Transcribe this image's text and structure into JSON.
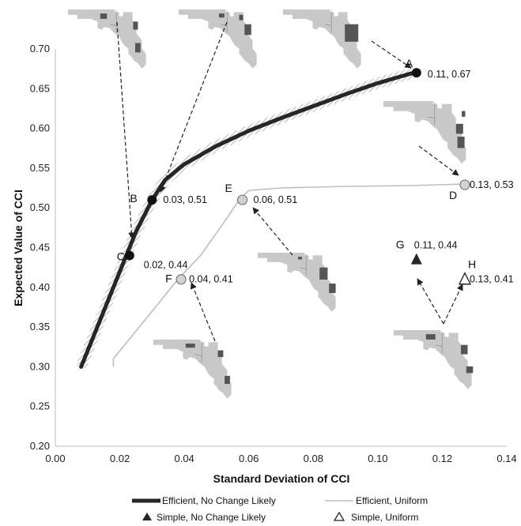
{
  "chart_data": {
    "type": "line",
    "xlabel": "Standard Deviation of CCI",
    "ylabel": "Expected Value of CCI",
    "xlim": [
      0,
      0.14
    ],
    "ylim": [
      0.2,
      0.7
    ],
    "x_ticks": [
      "0.00",
      "0.02",
      "0.04",
      "0.06",
      "0.08",
      "0.10",
      "0.12",
      "0.14"
    ],
    "y_ticks": [
      "0.20",
      "0.25",
      "0.30",
      "0.35",
      "0.40",
      "0.45",
      "0.50",
      "0.55",
      "0.60",
      "0.65",
      "0.70"
    ],
    "grid": false,
    "legend_position": "bottom",
    "series": [
      {
        "name": "Efficient, No Change Likely",
        "style": "thick-line",
        "color": "#262626",
        "x": [
          0.008,
          0.015,
          0.02,
          0.025,
          0.03,
          0.034,
          0.04,
          0.05,
          0.06,
          0.07,
          0.08,
          0.09,
          0.1,
          0.111
        ],
        "y": [
          0.3,
          0.37,
          0.42,
          0.47,
          0.51,
          0.535,
          0.555,
          0.578,
          0.597,
          0.613,
          0.628,
          0.643,
          0.657,
          0.67
        ]
      },
      {
        "name": "Efficient, Uniform",
        "style": "thin-line",
        "color": "#bdbdbd",
        "x": [
          0.018,
          0.018,
          0.022,
          0.03,
          0.038,
          0.045,
          0.052,
          0.057,
          0.06,
          0.07,
          0.09,
          0.11,
          0.127
        ],
        "y": [
          0.3,
          0.31,
          0.33,
          0.37,
          0.41,
          0.44,
          0.48,
          0.51,
          0.522,
          0.525,
          0.527,
          0.528,
          0.53
        ]
      },
      {
        "name": "Simple, No Change Likely",
        "style": "filled-triangle",
        "color": "#262626",
        "x": [
          0.112
        ],
        "y": [
          0.435
        ]
      },
      {
        "name": "Simple, Uniform",
        "style": "open-triangle",
        "color": "#262626",
        "x": [
          0.127
        ],
        "y": [
          0.41
        ]
      }
    ],
    "points": [
      {
        "label": "A",
        "value": "0.11, 0.67",
        "x": 0.112,
        "y": 0.67,
        "marker": "dark-circle"
      },
      {
        "label": "B",
        "value": "0.03, 0.51",
        "x": 0.03,
        "y": 0.51,
        "marker": "dark-circle"
      },
      {
        "label": "C",
        "value": "0.02, 0.44",
        "x": 0.023,
        "y": 0.44,
        "marker": "dark-circle"
      },
      {
        "label": "D",
        "value": "0.13, 0.53",
        "x": 0.127,
        "y": 0.529,
        "marker": "light-circle"
      },
      {
        "label": "E",
        "value": "0.06, 0.51",
        "x": 0.058,
        "y": 0.51,
        "marker": "light-circle"
      },
      {
        "label": "F",
        "value": "0.04, 0.41",
        "x": 0.039,
        "y": 0.41,
        "marker": "light-circle"
      },
      {
        "label": "G",
        "value": "0.11, 0.44",
        "x": 0.112,
        "y": 0.435,
        "marker": "filled-triangle"
      },
      {
        "label": "H",
        "value": "0.13, 0.41",
        "x": 0.127,
        "y": 0.41,
        "marker": "open-triangle"
      }
    ]
  }
}
